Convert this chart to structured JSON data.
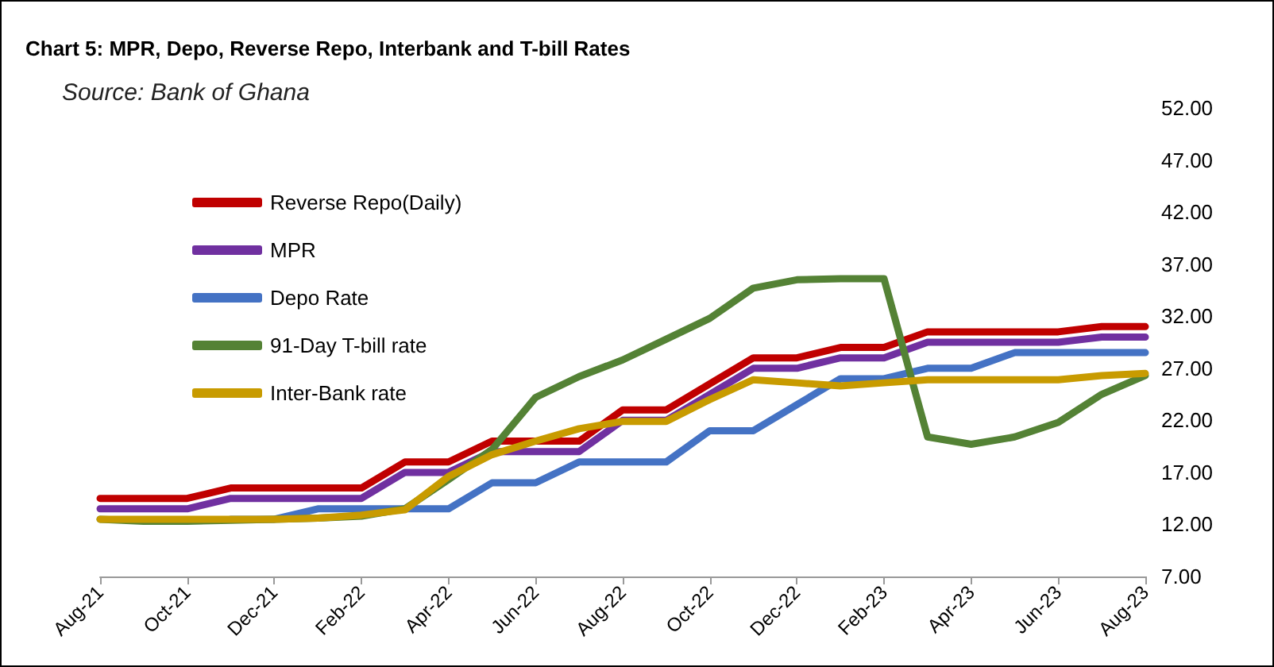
{
  "chart_data": {
    "type": "line",
    "title": "Chart 5: MPR, Depo, Reverse Repo, Interbank and T-bill Rates",
    "annotations": [
      "Source: Bank of Ghana"
    ],
    "categories": [
      "Aug-21",
      null,
      "Oct-21",
      null,
      "Dec-21",
      null,
      "Feb-22",
      null,
      "Apr-22",
      null,
      "Jun-22",
      null,
      "Aug-22",
      null,
      "Oct-22",
      null,
      "Dec-22",
      null,
      "Feb-23",
      null,
      "Apr-23",
      null,
      "Jun-23",
      null,
      "Aug-23"
    ],
    "series": [
      {
        "name": "Reverse Repo(Daily)",
        "color": "#c00000",
        "values": [
          14.5,
          14.5,
          14.5,
          15.5,
          15.5,
          15.5,
          15.5,
          18,
          18,
          20,
          20,
          20,
          23,
          23,
          25.5,
          28,
          28,
          29,
          29,
          30.5,
          30.5,
          30.5,
          30.5,
          31,
          31
        ]
      },
      {
        "name": "MPR",
        "color": "#7030a0",
        "values": [
          13.5,
          13.5,
          13.5,
          14.5,
          14.5,
          14.5,
          14.5,
          17,
          17,
          19,
          19,
          19,
          22,
          22,
          24.5,
          27,
          27,
          28,
          28,
          29.5,
          29.5,
          29.5,
          29.5,
          30,
          30
        ]
      },
      {
        "name": "Depo Rate",
        "color": "#4472c4",
        "values": [
          null,
          null,
          null,
          12.5,
          12.5,
          13.5,
          13.5,
          13.5,
          13.5,
          16,
          16,
          18,
          18,
          18,
          21,
          21,
          23.5,
          26,
          26,
          27,
          27,
          28.5,
          28.5,
          28.5,
          28.5
        ]
      },
      {
        "name": "91-Day T-bill rate",
        "color": "#548235",
        "values": [
          12.5,
          12.3,
          12.3,
          12.4,
          12.5,
          12.6,
          12.8,
          13.5,
          16.3,
          19.2,
          24.2,
          26.2,
          27.8,
          29.8,
          31.8,
          34.7,
          35.5,
          35.6,
          35.6,
          20.4,
          19.7,
          20.4,
          21.8,
          24.5,
          26.3
        ]
      },
      {
        "name": "Inter-Bank rate",
        "color": "#c89b00",
        "values": [
          12.5,
          12.5,
          12.5,
          12.5,
          12.5,
          12.6,
          12.9,
          13.4,
          16.6,
          18.7,
          20,
          21.2,
          21.9,
          21.9,
          24,
          25.9,
          25.6,
          25.3,
          25.6,
          25.9,
          25.9,
          25.9,
          25.9,
          26.3,
          26.5
        ]
      }
    ],
    "ylim": [
      7,
      52
    ],
    "yticks": [
      {
        "value": 7,
        "label": "7.00"
      },
      {
        "value": 12,
        "label": "12.00"
      },
      {
        "value": 17,
        "label": "17.00"
      },
      {
        "value": 22,
        "label": "22.00"
      },
      {
        "value": 27,
        "label": "27.00"
      },
      {
        "value": 32,
        "label": "32.00"
      },
      {
        "value": 37,
        "label": "37.00"
      },
      {
        "value": 42,
        "label": "42.00"
      },
      {
        "value": 47,
        "label": "47.00"
      },
      {
        "value": 52,
        "label": "52.00"
      }
    ],
    "grid": false,
    "legend": "top left",
    "marker": "none",
    "line_style": "solid"
  }
}
